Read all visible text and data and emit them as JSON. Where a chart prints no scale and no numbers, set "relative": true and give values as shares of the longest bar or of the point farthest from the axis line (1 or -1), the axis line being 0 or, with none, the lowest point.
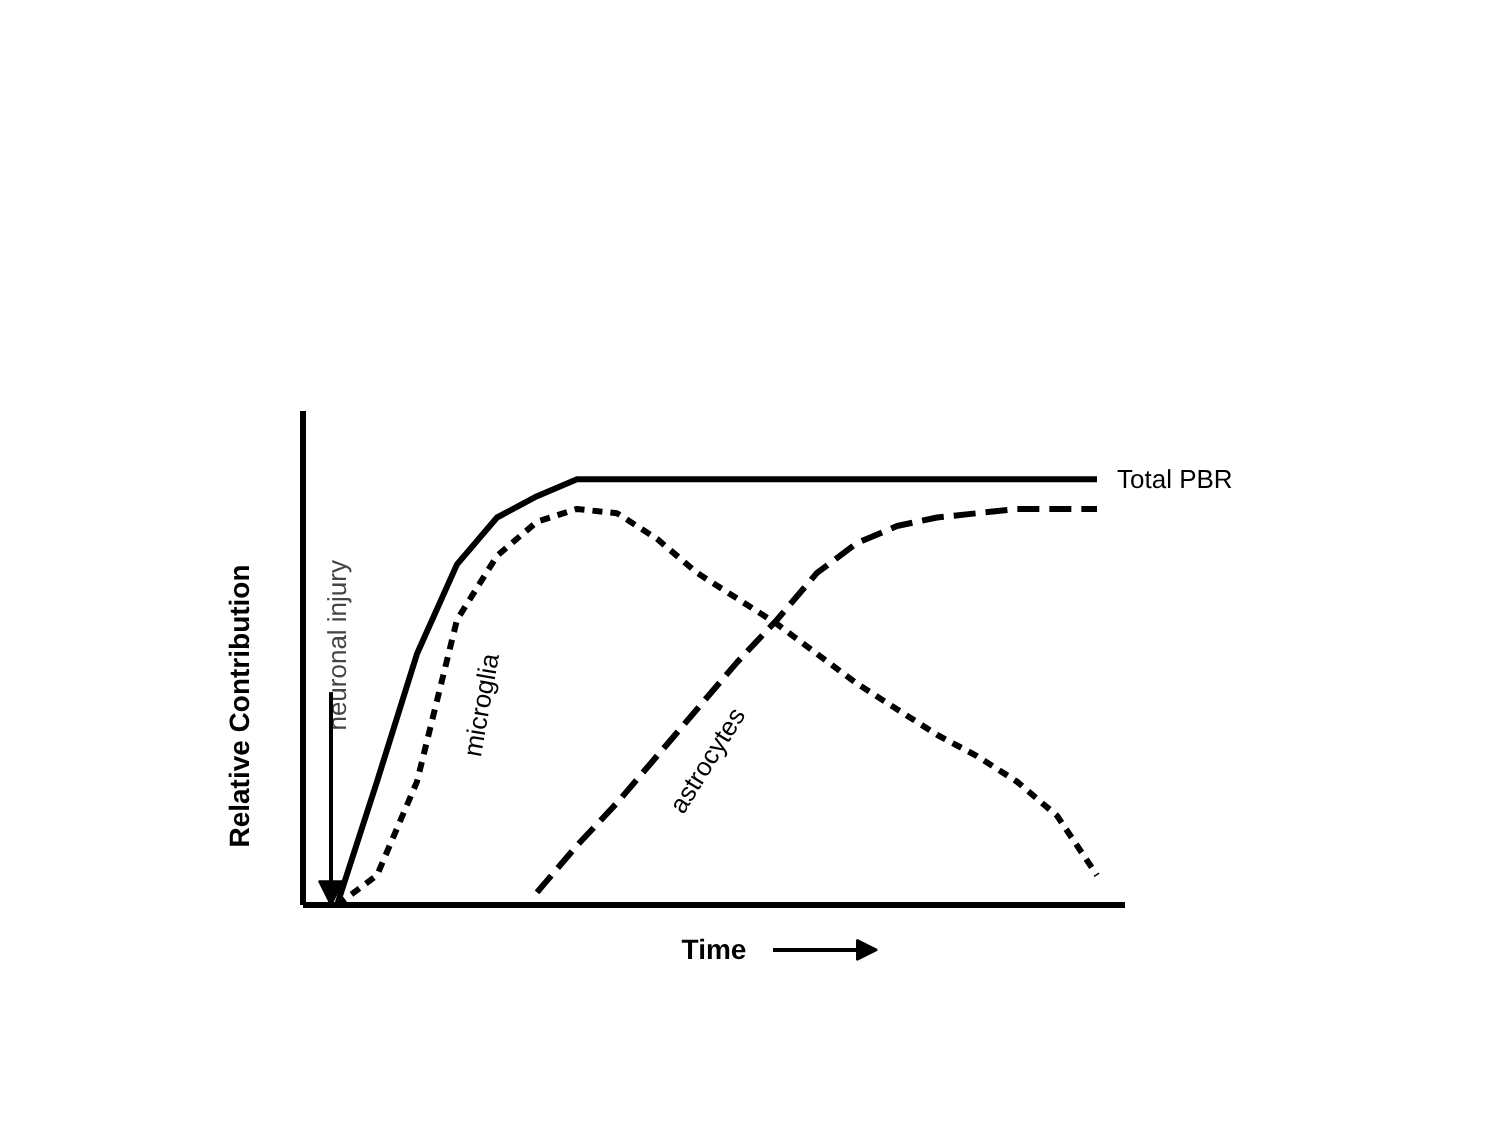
{
  "chart_data": {
    "type": "line",
    "relative": true,
    "xlabel": "Time",
    "ylabel": "Relative Contribution",
    "categories": [
      null,
      null,
      null,
      null,
      null,
      null,
      null,
      null,
      null,
      null,
      null,
      null,
      null,
      null,
      null,
      null,
      null,
      null,
      null,
      null
    ],
    "series": [
      {
        "name": "Total PBR",
        "color": "#000000",
        "line_style": "solid",
        "values": [
          0,
          0.29,
          0.59,
          0.8,
          0.91,
          0.96,
          1,
          1,
          1,
          1,
          1,
          1,
          1,
          1,
          1,
          1,
          1,
          1,
          1,
          1
        ]
      },
      {
        "name": "microglia",
        "color": "#000000",
        "line_style": "dotted",
        "values": [
          0,
          0.07,
          0.29,
          0.67,
          0.82,
          0.9,
          0.93,
          0.92,
          0.86,
          0.78,
          0.72,
          0.66,
          0.59,
          0.52,
          0.46,
          0.4,
          0.35,
          0.29,
          0.21,
          0.07
        ]
      },
      {
        "name": "astrocytes",
        "color": "#000000",
        "line_style": "dashed",
        "values": [
          null,
          null,
          null,
          null,
          null,
          0.03,
          0.14,
          0.24,
          0.35,
          0.46,
          0.57,
          0.67,
          0.78,
          0.85,
          0.89,
          0.91,
          0.92,
          0.93,
          0.93,
          0.93
        ]
      }
    ],
    "annotations": [
      "neuronal injury"
    ],
    "grid": false,
    "legend": false
  }
}
